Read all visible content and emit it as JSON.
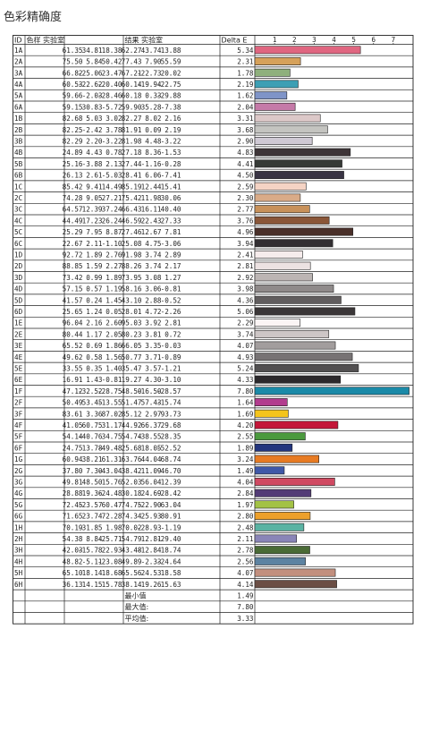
{
  "page_title": "色彩精确度",
  "chart_data": {
    "type": "table",
    "headers": [
      "ID",
      "色样 实验室",
      "结果 实验室",
      "Delta E"
    ],
    "axis_ticks": [
      1,
      2,
      3,
      4,
      5,
      6,
      7
    ],
    "xlim": [
      0,
      8
    ],
    "rows": [
      {
        "id": "1A",
        "ref": [
          "61.35",
          "34.81",
          "18.38"
        ],
        "res": [
          "62.27",
          "43.74",
          "13.88"
        ],
        "de": "5.34",
        "color": "#e06680"
      },
      {
        "id": "2A",
        "ref": [
          "75.50",
          "5.84",
          "50.42"
        ],
        "res": [
          "77.43",
          "7.90",
          "55.59"
        ],
        "de": "2.31",
        "color": "#d6a15a"
      },
      {
        "id": "3A",
        "ref": [
          "66.82",
          "-25.06",
          "23.47"
        ],
        "res": [
          "67.21",
          "-22.73",
          "20.02"
        ],
        "de": "1.78",
        "color": "#8fb07c"
      },
      {
        "id": "4A",
        "ref": [
          "60.53",
          "-22.62",
          "-20.40"
        ],
        "res": [
          "60.14",
          "-19.94",
          "-22.75"
        ],
        "de": "2.19",
        "color": "#3d9fb4"
      },
      {
        "id": "5A",
        "ref": [
          "59.66",
          "-2.03",
          "-28.46"
        ],
        "res": [
          "60.18",
          "0.33",
          "-29.88"
        ],
        "de": "1.62",
        "color": "#7f94c8"
      },
      {
        "id": "6A",
        "ref": [
          "59.15",
          "30.83",
          "-5.72"
        ],
        "res": [
          "59.90",
          "35.28",
          "-7.38"
        ],
        "de": "2.04",
        "color": "#c57aa8"
      },
      {
        "id": "1B",
        "ref": [
          "82.68",
          "5.03",
          "3.02"
        ],
        "res": [
          "82.27",
          "8.02",
          "2.16"
        ],
        "de": "3.31",
        "color": "#dcc8c8"
      },
      {
        "id": "2B",
        "ref": [
          "82.25",
          "-2.42",
          "3.78"
        ],
        "res": [
          "81.91",
          "0.09",
          "2.19"
        ],
        "de": "3.68",
        "color": "#c4c4c0"
      },
      {
        "id": "3B",
        "ref": [
          "82.29",
          "2.20",
          "-3.22"
        ],
        "res": [
          "81.98",
          "4.48",
          "-3.22"
        ],
        "de": "2.90",
        "color": "#cfc9d4"
      },
      {
        "id": "4B",
        "ref": [
          "24.89",
          "4.43",
          "0.78"
        ],
        "res": [
          "27.18",
          "8.36",
          "-1.53"
        ],
        "de": "4.83",
        "color": "#3e3538"
      },
      {
        "id": "5B",
        "ref": [
          "25.16",
          "-3.88",
          "2.13"
        ],
        "res": [
          "27.44",
          "-1.16",
          "-0.28"
        ],
        "de": "4.41",
        "color": "#363a36"
      },
      {
        "id": "6B",
        "ref": [
          "26.13",
          "2.61",
          "-5.03"
        ],
        "res": [
          "28.41",
          "6.06",
          "-7.41"
        ],
        "de": "4.50",
        "color": "#393444"
      },
      {
        "id": "1C",
        "ref": [
          "85.42",
          "9.41",
          "14.49"
        ],
        "res": [
          "85.19",
          "12.44",
          "15.41"
        ],
        "de": "2.59",
        "color": "#f4d3c4"
      },
      {
        "id": "2C",
        "ref": [
          "74.28",
          "9.05",
          "27.21"
        ],
        "res": [
          "75.42",
          "11.98",
          "30.06"
        ],
        "de": "2.30",
        "color": "#d9ab88"
      },
      {
        "id": "3C",
        "ref": [
          "64.57",
          "12.39",
          "37.24"
        ],
        "res": [
          "66.43",
          "16.11",
          "40.40"
        ],
        "de": "2.77",
        "color": "#c8915a"
      },
      {
        "id": "4C",
        "ref": [
          "44.49",
          "17.23",
          "26.24"
        ],
        "res": [
          "46.59",
          "22.43",
          "27.33"
        ],
        "de": "3.76",
        "color": "#8a5638"
      },
      {
        "id": "5C",
        "ref": [
          "25.29",
          "7.95",
          "8.87"
        ],
        "res": [
          "27.46",
          "12.67",
          "7.81"
        ],
        "de": "4.96",
        "color": "#4a302a"
      },
      {
        "id": "6C",
        "ref": [
          "22.67",
          "2.11",
          "-1.10"
        ],
        "res": [
          "25.08",
          "4.75",
          "-3.06"
        ],
        "de": "3.94",
        "color": "#332f33"
      },
      {
        "id": "1D",
        "ref": [
          "92.72",
          "1.89",
          "2.76"
        ],
        "res": [
          "91.98",
          "3.74",
          "2.89"
        ],
        "de": "2.41",
        "color": "#f6ecec"
      },
      {
        "id": "2D",
        "ref": [
          "88.85",
          "1.59",
          "2.27"
        ],
        "res": [
          "88.26",
          "3.74",
          "2.17"
        ],
        "de": "2.81",
        "color": "#ece2e2"
      },
      {
        "id": "3D",
        "ref": [
          "73.42",
          "0.99",
          "1.89"
        ],
        "res": [
          "73.95",
          "3.08",
          "1.27"
        ],
        "de": "2.92",
        "color": "#bcb5b4"
      },
      {
        "id": "4D",
        "ref": [
          "57.15",
          "0.57",
          "1.19"
        ],
        "res": [
          "58.16",
          "3.06",
          "-0.81"
        ],
        "de": "3.98",
        "color": "#8f8a8a"
      },
      {
        "id": "5D",
        "ref": [
          "41.57",
          "0.24",
          "1.45"
        ],
        "res": [
          "43.10",
          "2.88",
          "-0.52"
        ],
        "de": "4.36",
        "color": "#615d5e"
      },
      {
        "id": "6D",
        "ref": [
          "25.65",
          "1.24",
          "0.05"
        ],
        "res": [
          "28.01",
          "4.72",
          "-2.26"
        ],
        "de": "5.06",
        "color": "#3b3738"
      },
      {
        "id": "1E",
        "ref": [
          "96.04",
          "2.16",
          "2.60"
        ],
        "res": [
          "95.03",
          "3.92",
          "2.81"
        ],
        "de": "2.29",
        "color": "#fbf5f5"
      },
      {
        "id": "2E",
        "ref": [
          "80.44",
          "1.17",
          "2.05"
        ],
        "res": [
          "80.23",
          "3.81",
          "0.72"
        ],
        "de": "3.74",
        "color": "#cdc6c6"
      },
      {
        "id": "3E",
        "ref": [
          "65.52",
          "0.69",
          "1.86"
        ],
        "res": [
          "66.05",
          "3.35",
          "-0.03"
        ],
        "de": "4.07",
        "color": "#a29d9d"
      },
      {
        "id": "4E",
        "ref": [
          "49.62",
          "0.58",
          "1.56"
        ],
        "res": [
          "50.77",
          "3.71",
          "-0.89"
        ],
        "de": "4.93",
        "color": "#777374"
      },
      {
        "id": "5E",
        "ref": [
          "33.55",
          "0.35",
          "1.40"
        ],
        "res": [
          "35.47",
          "3.57",
          "-1.21"
        ],
        "de": "5.24",
        "color": "#525051"
      },
      {
        "id": "6E",
        "ref": [
          "16.91",
          "1.43",
          "-0.81"
        ],
        "res": [
          "19.27",
          "4.30",
          "-3.10"
        ],
        "de": "4.33",
        "color": "#2c292c"
      },
      {
        "id": "1F",
        "ref": [
          "47.12",
          "-32.52",
          "-28.75"
        ],
        "res": [
          "48.50",
          "-16.50",
          "-28.57"
        ],
        "de": "7.80",
        "color": "#1b8aa8"
      },
      {
        "id": "2F",
        "ref": [
          "50.49",
          "53.45",
          "-13.55"
        ],
        "res": [
          "51.47",
          "57.43",
          "-15.74"
        ],
        "de": "1.64",
        "color": "#b23c8e"
      },
      {
        "id": "3F",
        "ref": [
          "83.61",
          "3.36",
          "87.02"
        ],
        "res": [
          "85.12",
          "2.97",
          "93.73"
        ],
        "de": "1.69",
        "color": "#f4c41c"
      },
      {
        "id": "4F",
        "ref": [
          "41.05",
          "60.75",
          "31.17"
        ],
        "res": [
          "44.92",
          "66.37",
          "29.68"
        ],
        "de": "4.20",
        "color": "#c41639"
      },
      {
        "id": "5F",
        "ref": [
          "54.14",
          "-40.76",
          "34.75"
        ],
        "res": [
          "54.74",
          "-38.55",
          "28.35"
        ],
        "de": "2.55",
        "color": "#4b9a3e"
      },
      {
        "id": "6F",
        "ref": [
          "24.75",
          "13.78",
          "-49.48"
        ],
        "res": [
          "25.68",
          "18.05",
          "-52.52"
        ],
        "de": "1.89",
        "color": "#23357e"
      },
      {
        "id": "1G",
        "ref": [
          "60.94",
          "38.21",
          "61.31"
        ],
        "res": [
          "63.76",
          "44.04",
          "68.74"
        ],
        "de": "3.24",
        "color": "#e77b23"
      },
      {
        "id": "2G",
        "ref": [
          "37.80",
          "7.30",
          "-43.04"
        ],
        "res": [
          "38.42",
          "11.09",
          "-46.70"
        ],
        "de": "1.49",
        "color": "#3f58a8"
      },
      {
        "id": "3G",
        "ref": [
          "49.81",
          "48.50",
          "15.76"
        ],
        "res": [
          "52.03",
          "56.04",
          "12.39"
        ],
        "de": "4.04",
        "color": "#d04a62"
      },
      {
        "id": "4G",
        "ref": [
          "28.88",
          "19.36",
          "-24.48"
        ],
        "res": [
          "30.18",
          "24.69",
          "-28.42"
        ],
        "de": "2.84",
        "color": "#533c76"
      },
      {
        "id": "5G",
        "ref": [
          "72.45",
          "-23.57",
          "60.47"
        ],
        "res": [
          "74.75",
          "-22.90",
          "63.04"
        ],
        "de": "1.97",
        "color": "#a3c245"
      },
      {
        "id": "6G",
        "ref": [
          "71.65",
          "23.74",
          "72.28"
        ],
        "res": [
          "74.34",
          "25.93",
          "80.91"
        ],
        "de": "2.80",
        "color": "#eda02a"
      },
      {
        "id": "1H",
        "ref": [
          "70.19",
          "-31.85",
          "1.98"
        ],
        "res": [
          "70.02",
          "-28.93",
          "-1.19"
        ],
        "de": "2.48",
        "color": "#5ab3a3"
      },
      {
        "id": "2H",
        "ref": [
          "54.38",
          "8.84",
          "-25.71"
        ],
        "res": [
          "54.79",
          "12.81",
          "-29.40"
        ],
        "de": "2.11",
        "color": "#8a85b8"
      },
      {
        "id": "3H",
        "ref": [
          "42.03",
          "-15.78",
          "22.93"
        ],
        "res": [
          "43.48",
          "-12.84",
          "18.74"
        ],
        "de": "2.78",
        "color": "#4a6b36"
      },
      {
        "id": "4H",
        "ref": [
          "48.82",
          "-5.11",
          "-23.08"
        ],
        "res": [
          "49.89",
          "-2.33",
          "-24.64"
        ],
        "de": "2.56",
        "color": "#5d83a2"
      },
      {
        "id": "5H",
        "ref": [
          "65.10",
          "18.14",
          "18.68"
        ],
        "res": [
          "65.56",
          "24.53",
          "18.58"
        ],
        "de": "4.07",
        "color": "#c28f7e"
      },
      {
        "id": "6H",
        "ref": [
          "36.13",
          "14.15",
          "15.78"
        ],
        "res": [
          "38.14",
          "19.26",
          "15.63"
        ],
        "de": "4.14",
        "color": "#6b4e45"
      }
    ],
    "summary": [
      {
        "label": "最小值",
        "value": "1.49"
      },
      {
        "label": "最大值:",
        "value": "7.80"
      },
      {
        "label": "平均值:",
        "value": "3.33"
      }
    ]
  }
}
